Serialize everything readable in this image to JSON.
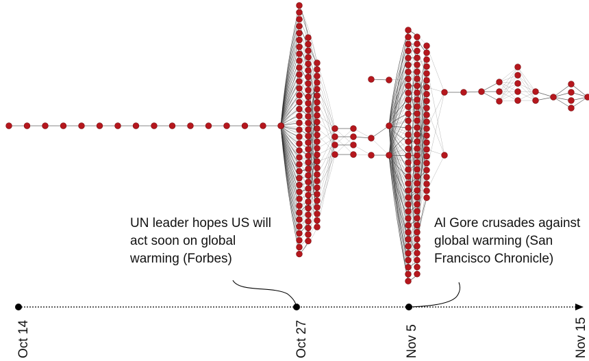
{
  "timeline": {
    "dates": [
      "Oct 14",
      "Oct 27",
      "Nov 5",
      "Nov 15"
    ]
  },
  "annotations": {
    "left": [
      "UN leader hopes US will",
      "act soon on global",
      "warming (Forbes)"
    ],
    "right": [
      "Al Gore crusades against",
      "global warming (San",
      "Francisco Chronicle)"
    ]
  },
  "colors": {
    "node": "#b5171d",
    "node_stroke": "#7a0c10",
    "edge": "#7a7a7a",
    "edge_dark": "#2a2a2a",
    "axis": "#000000"
  }
}
